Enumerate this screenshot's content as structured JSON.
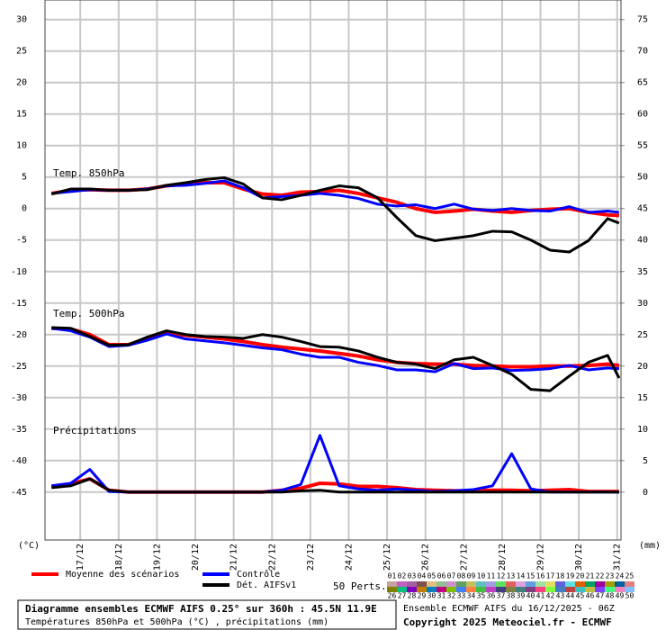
{
  "chart_data": {
    "type": "line",
    "x": [
      16.25,
      16.75,
      17.25,
      17.75,
      18.25,
      18.75,
      19.25,
      19.75,
      20.25,
      20.75,
      21.25,
      21.75,
      22.25,
      22.75,
      23.25,
      23.75,
      24.25,
      24.75,
      25.25,
      25.75,
      26.25,
      26.75,
      27.25,
      27.75,
      28.25,
      28.75,
      29.25,
      29.75,
      30.25,
      30.75,
      31.05
    ],
    "xlim": [
      16.08,
      31.1
    ],
    "xticks": [
      {
        "value": 17,
        "label": "17/12"
      },
      {
        "value": 18,
        "label": "18/12"
      },
      {
        "value": 19,
        "label": "19/12"
      },
      {
        "value": 20,
        "label": "20/12"
      },
      {
        "value": 21,
        "label": "21/12"
      },
      {
        "value": 22,
        "label": "22/12"
      },
      {
        "value": 23,
        "label": "23/12"
      },
      {
        "value": 24,
        "label": "24/12"
      },
      {
        "value": 25,
        "label": "25/12"
      },
      {
        "value": 26,
        "label": "26/12"
      },
      {
        "value": 27,
        "label": "27/12"
      },
      {
        "value": 28,
        "label": "28/12"
      },
      {
        "value": 29,
        "label": "29/12"
      },
      {
        "value": 30,
        "label": "30/12"
      },
      {
        "value": 31,
        "label": "31/12"
      }
    ],
    "ylim": [
      -52.6,
      33.1
    ],
    "yticks": [
      30,
      25,
      20,
      15,
      10,
      5,
      0,
      -5,
      -10,
      -15,
      -20,
      -25,
      -30,
      -35,
      -40,
      -45
    ],
    "y2lim": [
      -7.6,
      78.1
    ],
    "y2ticks": [
      75,
      70,
      65,
      60,
      55,
      50,
      45,
      40,
      35,
      30,
      25,
      20,
      15,
      10,
      5,
      0
    ],
    "ylabel": "(°C)",
    "y2label": "(mm)",
    "grid": true,
    "legend": [
      {
        "name": "Moyenne des scénarios",
        "color": "#ff0000"
      },
      {
        "name": "Contrôle",
        "color": "#0000ff"
      },
      {
        "name": "Dét. AIFSv1",
        "color": "#000000"
      }
    ],
    "panels": [
      {
        "label": "Temp. 850hPa",
        "axis": "y",
        "series": [
          [
            2.4,
            2.9,
            3.0,
            2.9,
            2.9,
            3.1,
            3.6,
            3.9,
            4.1,
            4.1,
            3.1,
            2.3,
            2.1,
            2.6,
            2.7,
            2.9,
            2.4,
            1.7,
            1.0,
            0.0,
            -0.6,
            -0.4,
            -0.1,
            -0.4,
            -0.6,
            -0.3,
            -0.1,
            0.0,
            -0.6,
            -1.0,
            -1.1
          ],
          [
            2.4,
            2.7,
            3.0,
            2.9,
            2.9,
            3.1,
            3.6,
            3.7,
            4.0,
            4.4,
            3.3,
            1.7,
            1.9,
            2.1,
            2.4,
            2.1,
            1.6,
            0.7,
            0.4,
            0.6,
            0.0,
            0.7,
            -0.1,
            -0.3,
            0.0,
            -0.3,
            -0.4,
            0.3,
            -0.6,
            -0.4,
            -0.6
          ],
          [
            2.3,
            3.1,
            3.1,
            2.9,
            2.9,
            3.0,
            3.7,
            4.1,
            4.6,
            4.9,
            3.9,
            1.7,
            1.4,
            2.1,
            2.9,
            3.6,
            3.3,
            1.7,
            -1.4,
            -4.3,
            -5.1,
            -4.7,
            -4.3,
            -3.6,
            -3.7,
            -5.0,
            -6.6,
            -6.9,
            -5.1,
            -1.6,
            -2.3
          ]
        ]
      },
      {
        "label": "Temp. 500hPa",
        "axis": "y",
        "series": [
          [
            -19.0,
            -19.1,
            -20.0,
            -21.6,
            -21.6,
            -20.7,
            -19.7,
            -20.1,
            -20.4,
            -20.7,
            -21.1,
            -21.6,
            -22.0,
            -22.3,
            -22.6,
            -23.0,
            -23.4,
            -24.0,
            -24.4,
            -24.6,
            -24.7,
            -24.7,
            -24.9,
            -25.0,
            -25.1,
            -25.1,
            -25.0,
            -25.0,
            -24.9,
            -24.7,
            -24.9
          ],
          [
            -19.0,
            -19.4,
            -20.4,
            -21.9,
            -21.7,
            -20.9,
            -19.9,
            -20.7,
            -21.0,
            -21.3,
            -21.7,
            -22.1,
            -22.4,
            -23.1,
            -23.6,
            -23.6,
            -24.4,
            -24.9,
            -25.6,
            -25.6,
            -25.9,
            -24.6,
            -25.4,
            -25.3,
            -25.7,
            -25.6,
            -25.4,
            -24.9,
            -25.6,
            -25.3,
            -25.4
          ],
          [
            -18.9,
            -19.0,
            -20.3,
            -21.7,
            -21.6,
            -20.4,
            -19.4,
            -20.0,
            -20.3,
            -20.4,
            -20.6,
            -20.0,
            -20.4,
            -21.1,
            -21.9,
            -22.0,
            -22.6,
            -23.6,
            -24.4,
            -24.7,
            -25.4,
            -24.0,
            -23.6,
            -24.9,
            -26.3,
            -28.7,
            -28.9,
            -26.6,
            -24.4,
            -23.3,
            -26.9
          ]
        ]
      },
      {
        "label": "Précipitations",
        "axis": "y2",
        "series": [
          [
            0.9,
            1.3,
            2.1,
            0.3,
            0,
            0,
            0,
            0,
            0,
            0,
            0,
            0,
            0.3,
            0.6,
            1.4,
            1.3,
            0.9,
            0.9,
            0.7,
            0.4,
            0.3,
            0.2,
            0.2,
            0.3,
            0.3,
            0.2,
            0.3,
            0.4,
            0.1,
            0.1,
            0.1
          ],
          [
            1.0,
            1.4,
            3.6,
            0.1,
            0,
            0,
            0,
            0,
            0,
            0,
            0,
            0,
            0.3,
            1.2,
            9.0,
            1.0,
            0.5,
            0.3,
            0.5,
            0.3,
            0.1,
            0.2,
            0.4,
            1.0,
            6.1,
            0.5,
            0,
            0,
            0,
            0,
            0
          ],
          [
            0.7,
            1.0,
            2.1,
            0.3,
            0,
            0,
            0,
            0,
            0,
            0,
            0,
            0,
            0,
            0.2,
            0.3,
            0,
            0,
            0,
            0,
            0,
            0,
            0,
            0,
            0,
            0,
            0,
            0,
            0,
            0,
            0,
            0
          ]
        ]
      }
    ],
    "members_title": "50 Perts.",
    "members": [
      {
        "label": "01",
        "color": "#c8a0a0"
      },
      {
        "label": "02",
        "color": "#c060c0"
      },
      {
        "label": "03",
        "color": "#a060a0"
      },
      {
        "label": "04",
        "color": "#805050"
      },
      {
        "label": "05",
        "color": "#e0c080"
      },
      {
        "label": "06",
        "color": "#90c090"
      },
      {
        "label": "07",
        "color": "#d090d0"
      },
      {
        "label": "08",
        "color": "#60a060"
      },
      {
        "label": "09",
        "color": "#c0c060"
      },
      {
        "label": "10",
        "color": "#60c0c0"
      },
      {
        "label": "11",
        "color": "#a0a0e0"
      },
      {
        "label": "12",
        "color": "#60e060"
      },
      {
        "label": "13",
        "color": "#e06060"
      },
      {
        "label": "14",
        "color": "#e0a0e0"
      },
      {
        "label": "15",
        "color": "#60a0e0"
      },
      {
        "label": "16",
        "color": "#a0e0a0"
      },
      {
        "label": "17",
        "color": "#e0e060"
      },
      {
        "label": "18",
        "color": "#6060e0"
      },
      {
        "label": "19",
        "color": "#60e0e0"
      },
      {
        "label": "20",
        "color": "#e06000"
      },
      {
        "label": "21",
        "color": "#00a060"
      },
      {
        "label": "22",
        "color": "#a000a0"
      },
      {
        "label": "23",
        "color": "#a0a000"
      },
      {
        "label": "24",
        "color": "#0060a0"
      },
      {
        "label": "25",
        "color": "#e08080"
      },
      {
        "label": "26",
        "color": "#808000"
      },
      {
        "label": "27",
        "color": "#00c080"
      },
      {
        "label": "28",
        "color": "#8000c0"
      },
      {
        "label": "29",
        "color": "#c08000"
      },
      {
        "label": "30",
        "color": "#0080c0"
      },
      {
        "label": "31",
        "color": "#c00080"
      },
      {
        "label": "32",
        "color": "#80c000"
      },
      {
        "label": "33",
        "color": "#4080ff"
      },
      {
        "label": "34",
        "color": "#ff8040"
      },
      {
        "label": "35",
        "color": "#40c040"
      },
      {
        "label": "36",
        "color": "#c040c0"
      },
      {
        "label": "37",
        "color": "#404080"
      },
      {
        "label": "38",
        "color": "#808040"
      },
      {
        "label": "39",
        "color": "#408080"
      },
      {
        "label": "40",
        "color": "#804080"
      },
      {
        "label": "41",
        "color": "#ff4080"
      },
      {
        "label": "42",
        "color": "#80ff40"
      },
      {
        "label": "43",
        "color": "#4080c0"
      },
      {
        "label": "44",
        "color": "#c04040"
      },
      {
        "label": "45",
        "color": "#40c0c0"
      },
      {
        "label": "46",
        "color": "#c0c040"
      },
      {
        "label": "47",
        "color": "#8040ff"
      },
      {
        "label": "48",
        "color": "#40ff80"
      },
      {
        "label": "49",
        "color": "#ff80c0"
      },
      {
        "label": "50",
        "color": "#80c0ff"
      }
    ],
    "title": "Diagramme ensembles ECMWF AIFS 0.25° sur 360h : 45.5N 11.9E",
    "subtitle": "Températures 850hPa et 500hPa (°C) , précipitations (mm)",
    "run": "Ensemble ECMWF AIFS du 16/12/2025 - 06Z",
    "copyright": "Copyright 2025 Meteociel.fr - ECMWF"
  }
}
